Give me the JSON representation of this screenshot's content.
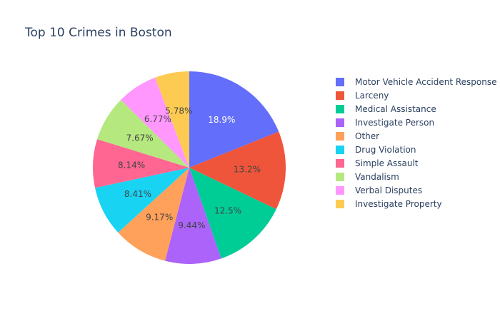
{
  "chart_data": {
    "type": "pie",
    "title": "Top 10 Crimes in Boston",
    "sort": "descending",
    "direction": "clockwise",
    "legend_position": "right",
    "slices": [
      {
        "label": "Motor Vehicle Accident Response",
        "percent": 18.9,
        "percent_text": "18.9%",
        "color": "#636efa",
        "text_color": "#ffffff"
      },
      {
        "label": "Larceny",
        "percent": 13.2,
        "percent_text": "13.2%",
        "color": "#EF553B",
        "text_color": "#444444"
      },
      {
        "label": "Medical Assistance",
        "percent": 12.5,
        "percent_text": "12.5%",
        "color": "#00cc96",
        "text_color": "#444444"
      },
      {
        "label": "Investigate Person",
        "percent": 9.44,
        "percent_text": "9.44%",
        "color": "#ab63fa",
        "text_color": "#444444"
      },
      {
        "label": "Other",
        "percent": 9.17,
        "percent_text": "9.17%",
        "color": "#FFA15A",
        "text_color": "#444444"
      },
      {
        "label": "Drug Violation",
        "percent": 8.41,
        "percent_text": "8.41%",
        "color": "#19d3f3",
        "text_color": "#444444"
      },
      {
        "label": "Simple Assault",
        "percent": 8.14,
        "percent_text": "8.14%",
        "color": "#FF6692",
        "text_color": "#444444"
      },
      {
        "label": "Vandalism",
        "percent": 7.67,
        "percent_text": "7.67%",
        "color": "#B6E880",
        "text_color": "#444444"
      },
      {
        "label": "Verbal Disputes",
        "percent": 6.77,
        "percent_text": "6.77%",
        "color": "#FF97FF",
        "text_color": "#444444"
      },
      {
        "label": "Investigate Property",
        "percent": 5.78,
        "percent_text": "5.78%",
        "color": "#FECB52",
        "text_color": "#444444"
      }
    ]
  }
}
